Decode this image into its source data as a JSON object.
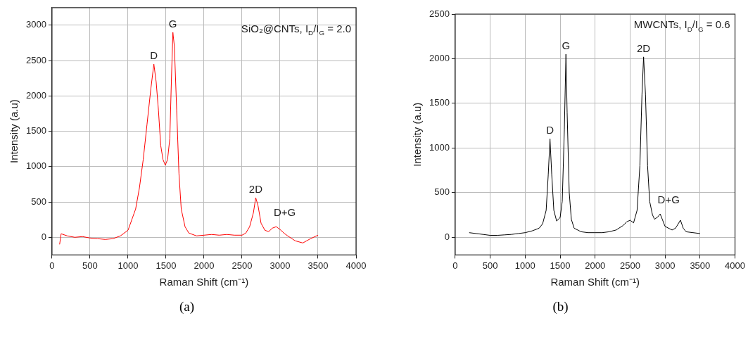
{
  "chart_data": [
    {
      "type": "line",
      "xlabel": "Raman Shift (cm⁻¹)",
      "ylabel": "Intensity (a.u)",
      "xlim": [
        0,
        4000
      ],
      "xticks": [
        0,
        500,
        1000,
        1500,
        2000,
        2500,
        3000,
        3500,
        4000
      ],
      "ylim": [
        -250,
        3250
      ],
      "yticks": [
        0,
        500,
        1000,
        1500,
        2000,
        2500,
        3000
      ],
      "grid": true,
      "series": [
        {
          "color": "#ff0000",
          "x": [
            100,
            120,
            200,
            300,
            400,
            500,
            600,
            700,
            800,
            900,
            1000,
            1100,
            1150,
            1200,
            1250,
            1300,
            1340,
            1370,
            1400,
            1430,
            1460,
            1490,
            1520,
            1550,
            1570,
            1590,
            1610,
            1640,
            1670,
            1700,
            1750,
            1800,
            1900,
            2000,
            2100,
            2200,
            2300,
            2400,
            2500,
            2550,
            2600,
            2650,
            2680,
            2710,
            2750,
            2800,
            2850,
            2900,
            2950,
            3000,
            3050,
            3100,
            3200,
            3300,
            3400,
            3500
          ],
          "values": [
            -100,
            50,
            20,
            0,
            10,
            -10,
            -20,
            -30,
            -20,
            20,
            100,
            400,
            700,
            1100,
            1600,
            2100,
            2450,
            2200,
            1800,
            1300,
            1100,
            1020,
            1100,
            1400,
            2200,
            2900,
            2700,
            1800,
            900,
            400,
            150,
            60,
            20,
            30,
            40,
            30,
            40,
            30,
            30,
            60,
            150,
            350,
            560,
            450,
            200,
            100,
            80,
            130,
            150,
            110,
            60,
            20,
            -50,
            -80,
            -20,
            30
          ]
        }
      ],
      "annotations": [
        "SiO₂@CNTs, I$_{D}$/I$_{G}$ = 2.0",
        "(a)",
        {
          "text": "D",
          "x": 1340,
          "y": 2450
        },
        {
          "text": "G",
          "x": 1590,
          "y": 2900
        },
        {
          "text": "2D",
          "x": 2680,
          "y": 560
        },
        {
          "text": "D+G",
          "x": 2950,
          "y": 150
        }
      ]
    },
    {
      "type": "line",
      "xlabel": "Raman Shift (cm⁻¹)",
      "ylabel": "Intensity (a.u)",
      "xlim": [
        0,
        4000
      ],
      "xticks": [
        0,
        500,
        1000,
        1500,
        2000,
        2500,
        3000,
        3500,
        4000
      ],
      "ylim": [
        -200,
        2500
      ],
      "yticks": [
        0,
        500,
        1000,
        1500,
        2000,
        2500
      ],
      "grid": true,
      "series": [
        {
          "color": "#000000",
          "x": [
            200,
            300,
            400,
            500,
            600,
            700,
            800,
            900,
            1000,
            1100,
            1200,
            1250,
            1300,
            1330,
            1355,
            1380,
            1410,
            1450,
            1500,
            1530,
            1560,
            1583,
            1600,
            1630,
            1660,
            1700,
            1800,
            1900,
            2000,
            2100,
            2200,
            2300,
            2400,
            2450,
            2500,
            2550,
            2600,
            2640,
            2670,
            2693,
            2720,
            2750,
            2780,
            2820,
            2850,
            2900,
            2930,
            2960,
            3000,
            3100,
            3150,
            3220,
            3260,
            3300,
            3400,
            3500
          ],
          "values": [
            50,
            40,
            30,
            20,
            20,
            25,
            30,
            40,
            50,
            70,
            100,
            150,
            300,
            700,
            1100,
            700,
            300,
            180,
            220,
            400,
            1200,
            2050,
            1400,
            500,
            200,
            100,
            60,
            50,
            50,
            50,
            60,
            80,
            130,
            170,
            190,
            160,
            300,
            800,
            1600,
            2020,
            1600,
            800,
            400,
            250,
            200,
            230,
            260,
            200,
            120,
            80,
            100,
            190,
            100,
            60,
            50,
            40
          ]
        }
      ],
      "annotations": [
        "MWCNTs, I$_{D}$/I$_{G}$ = 0.6",
        "(b)",
        {
          "text": "D",
          "x": 1355,
          "y": 1100
        },
        {
          "text": "G",
          "x": 1583,
          "y": 2050
        },
        {
          "text": "2D",
          "x": 2693,
          "y": 2020
        },
        {
          "text": "D+G",
          "x": 2930,
          "y": 260
        }
      ]
    }
  ]
}
